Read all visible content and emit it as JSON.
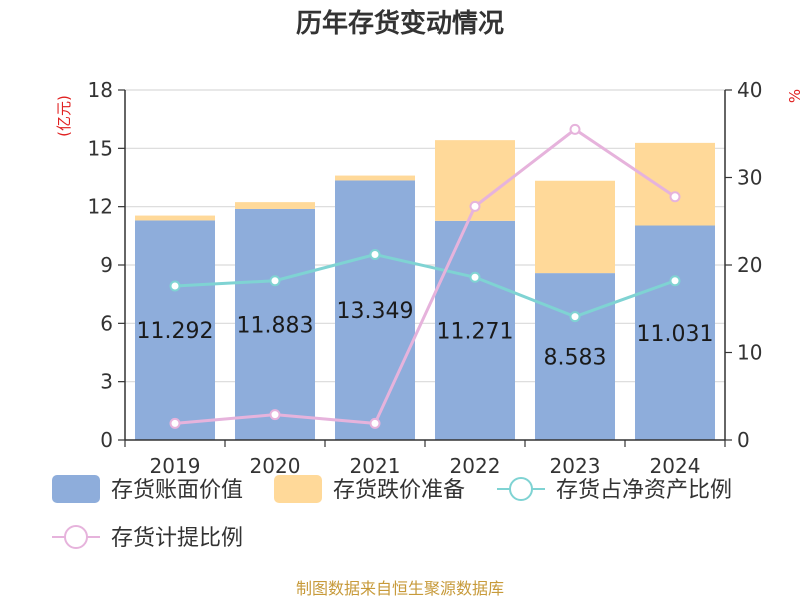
{
  "title": "历年存货变动情况",
  "source": "制图数据来自恒生聚源数据库",
  "chart_data": {
    "type": "bar",
    "categories": [
      "2019",
      "2020",
      "2021",
      "2022",
      "2023",
      "2024"
    ],
    "series": [
      {
        "name": "存货账面价值",
        "kind": "bar",
        "axis": "left",
        "stack": "inv",
        "color": "#8eaddb",
        "values": [
          11.292,
          11.883,
          13.349,
          11.271,
          8.583,
          11.031
        ],
        "data_labels": [
          "11.292",
          "11.883",
          "13.349",
          "11.271",
          "8.583",
          "11.031"
        ]
      },
      {
        "name": "存货跌价准备",
        "kind": "bar",
        "axis": "left",
        "stack": "inv",
        "color": "#ffd999",
        "values": [
          0.25,
          0.35,
          0.25,
          4.15,
          4.75,
          4.25
        ]
      },
      {
        "name": "存货占净资产比例",
        "kind": "line",
        "axis": "right",
        "color": "#7fd3d3",
        "values": [
          17.6,
          18.2,
          21.2,
          18.6,
          14.1,
          18.2
        ]
      },
      {
        "name": "存货计提比例",
        "kind": "line",
        "axis": "right",
        "color": "#e6b3dc",
        "values": [
          1.9,
          2.9,
          1.9,
          26.7,
          35.5,
          27.8
        ]
      }
    ],
    "y_left": {
      "unit": "(亿元)",
      "ylim": [
        0,
        18
      ],
      "ticks": [
        "0",
        "3",
        "6",
        "9",
        "12",
        "15",
        "18"
      ]
    },
    "y_right": {
      "unit": "%",
      "ylim": [
        0,
        40
      ],
      "ticks": [
        "0",
        "10",
        "20",
        "30",
        "40"
      ]
    },
    "grid": true,
    "legend": "bottom"
  }
}
